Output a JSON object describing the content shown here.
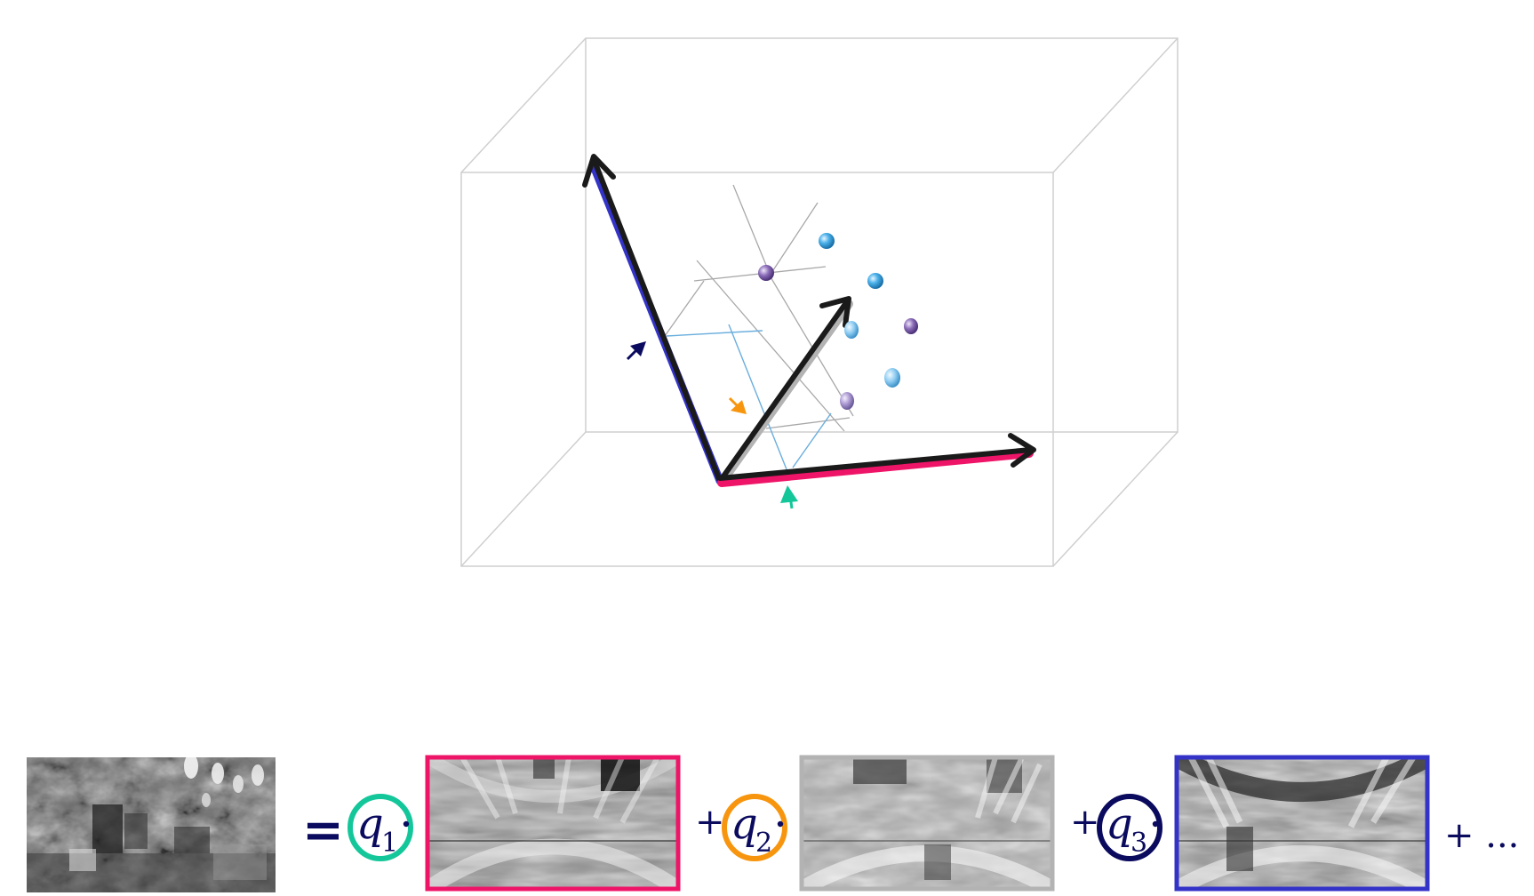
{
  "diagram": {
    "colors": {
      "box_edge": "#cfcfcf",
      "basis_1": "#ee1568",
      "basis_2": "#b3b3b3",
      "basis_3": "#3433c8",
      "arrow_core": "#1a1a1a",
      "coef_1": "#14c79a",
      "coef_2": "#f7960e",
      "coef_3": "#0a0a5e",
      "projection_line": "#6aaedd",
      "grid_line": "#a8a8a8",
      "point_blue": "#2e9ad9",
      "point_purple": "#7b5aa6"
    }
  },
  "equation": {
    "equals": "=",
    "plus": "+",
    "trailing": "+ ...",
    "coefficients": [
      {
        "symbol": "q",
        "subscript": "1",
        "ring_color": "#14c79a"
      },
      {
        "symbol": "q",
        "subscript": "2",
        "ring_color": "#f7960e"
      },
      {
        "symbol": "q",
        "subscript": "3",
        "ring_color": "#0a0a5e"
      }
    ],
    "basis_image_borders": [
      "#ee1568",
      "#b3b3b3",
      "#3433c8"
    ],
    "text_color": "#0a0a5e"
  }
}
